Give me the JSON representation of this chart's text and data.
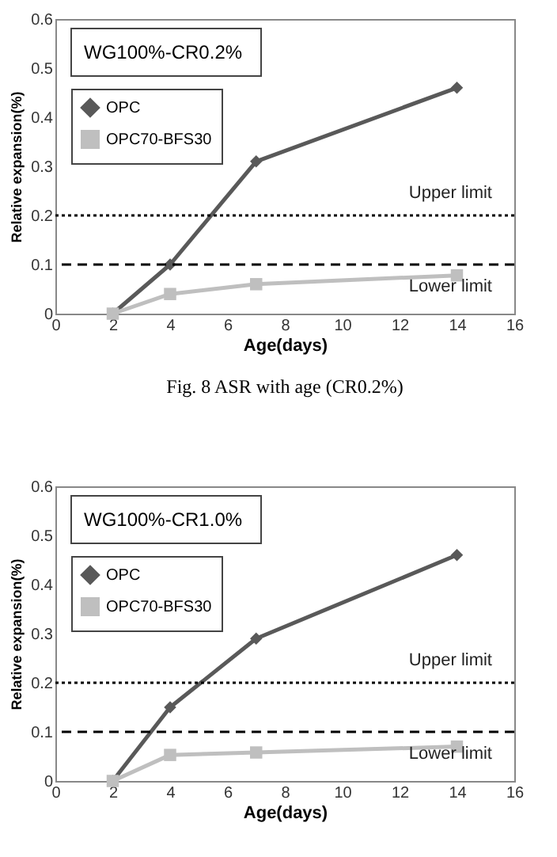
{
  "chart_data": [
    {
      "type": "line",
      "title": "WG100%-CR0.2%",
      "xlabel": "Age(days)",
      "ylabel": "Relative expansion(%)",
      "x": [
        2,
        4,
        7,
        14
      ],
      "series": [
        {
          "name": "OPC",
          "color": "#595959",
          "marker": "diamond",
          "values": [
            0,
            0.1,
            0.31,
            0.46
          ]
        },
        {
          "name": "OPC70-BFS30",
          "color": "#bfbfbf",
          "marker": "square",
          "values": [
            0,
            0.04,
            0.06,
            0.078
          ]
        }
      ],
      "xlim": [
        0,
        16
      ],
      "xticks": [
        0,
        2,
        4,
        6,
        8,
        10,
        12,
        14,
        16
      ],
      "ylim": [
        0,
        0.6
      ],
      "yticks": [
        0,
        0.1,
        0.2,
        0.3,
        0.4,
        0.5,
        0.6
      ],
      "ref_lines": [
        {
          "axis": "y",
          "value": 0.2,
          "label": "Upper limit",
          "color": "#000000",
          "line_style": "dotted"
        },
        {
          "axis": "y",
          "value": 0.1,
          "label": "Lower limit",
          "color": "#000000",
          "line_style": "dashed"
        }
      ],
      "grid": false,
      "legend": "top left",
      "line_style": "solid",
      "annotations": [
        "Fig. 8  ASR with age (CR0.2%)"
      ]
    },
    {
      "type": "line",
      "title": "WG100%-CR1.0%",
      "xlabel": "Age(days)",
      "ylabel": "Relative expansion(%)",
      "x": [
        2,
        4,
        7,
        14
      ],
      "series": [
        {
          "name": "OPC",
          "color": "#595959",
          "marker": "diamond",
          "values": [
            0,
            0.15,
            0.29,
            0.46
          ]
        },
        {
          "name": "OPC70-BFS30",
          "color": "#bfbfbf",
          "marker": "square",
          "values": [
            0,
            0.053,
            0.058,
            0.07
          ]
        }
      ],
      "xlim": [
        0,
        16
      ],
      "xticks": [
        0,
        2,
        4,
        6,
        8,
        10,
        12,
        14,
        16
      ],
      "ylim": [
        0,
        0.6
      ],
      "yticks": [
        0,
        0.1,
        0.2,
        0.3,
        0.4,
        0.5,
        0.6
      ],
      "ref_lines": [
        {
          "axis": "y",
          "value": 0.2,
          "label": "Upper limit",
          "color": "#000000",
          "line_style": "dotted"
        },
        {
          "axis": "y",
          "value": 0.1,
          "label": "Lower limit",
          "color": "#000000",
          "line_style": "dashed"
        }
      ],
      "grid": false,
      "legend": "top left",
      "line_style": "solid"
    }
  ]
}
